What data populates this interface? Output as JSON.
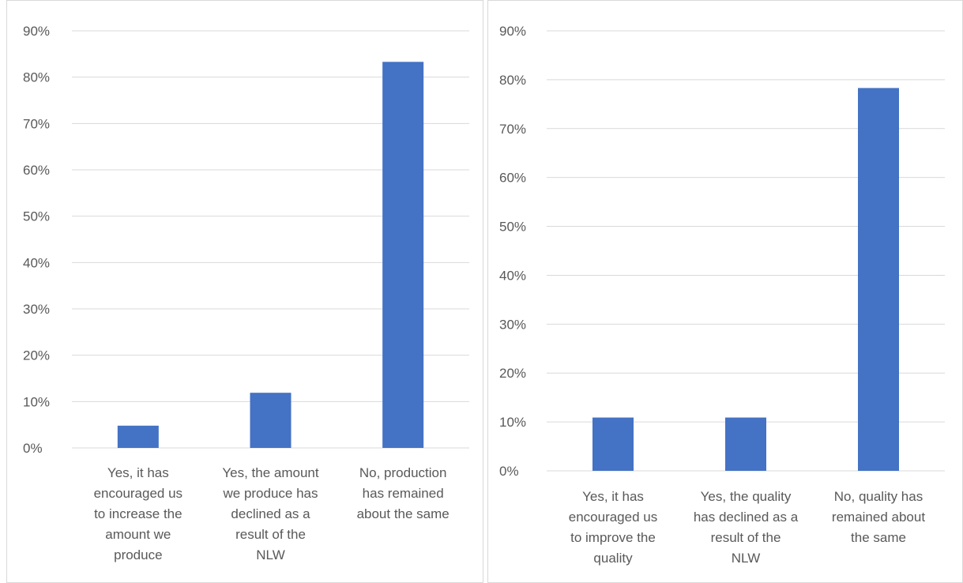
{
  "chart_data": [
    {
      "type": "bar",
      "categories": [
        "Yes, it has encouraged us to increase the amount we produce",
        "Yes, the amount we produce has declined as a result of the NLW",
        "No, production has remained about the same"
      ],
      "category_lines": [
        [
          "Yes, it has",
          "encouraged us",
          "to increase the",
          "amount we",
          "produce"
        ],
        [
          "Yes, the amount",
          "we produce has",
          "declined as a",
          "result of the",
          "NLW"
        ],
        [
          "No, production",
          "has remained",
          "about the same"
        ]
      ],
      "values": [
        4.8,
        11.9,
        83.3
      ],
      "ylim": [
        0,
        90
      ],
      "yticks": [
        "0%",
        "10%",
        "20%",
        "30%",
        "40%",
        "50%",
        "60%",
        "70%",
        "80%",
        "90%"
      ],
      "unit": "%",
      "grid": true,
      "bar_color": "#4472C4"
    },
    {
      "type": "bar",
      "categories": [
        "Yes, it has encouraged us to improve the quality",
        "Yes, the quality has declined as a result of the NLW",
        "No, quality has remained about the same"
      ],
      "category_lines": [
        [
          "Yes, it has",
          "encouraged us",
          "to improve the",
          "quality"
        ],
        [
          "Yes, the quality",
          "has declined as a",
          "result of the",
          "NLW"
        ],
        [
          "No, quality has",
          "remained about",
          "the same"
        ]
      ],
      "values": [
        10.9,
        10.9,
        78.3
      ],
      "ylim": [
        0,
        90
      ],
      "yticks": [
        "0%",
        "10%",
        "20%",
        "30%",
        "40%",
        "50%",
        "60%",
        "70%",
        "80%",
        "90%"
      ],
      "unit": "%",
      "grid": true,
      "bar_color": "#4472C4"
    }
  ]
}
